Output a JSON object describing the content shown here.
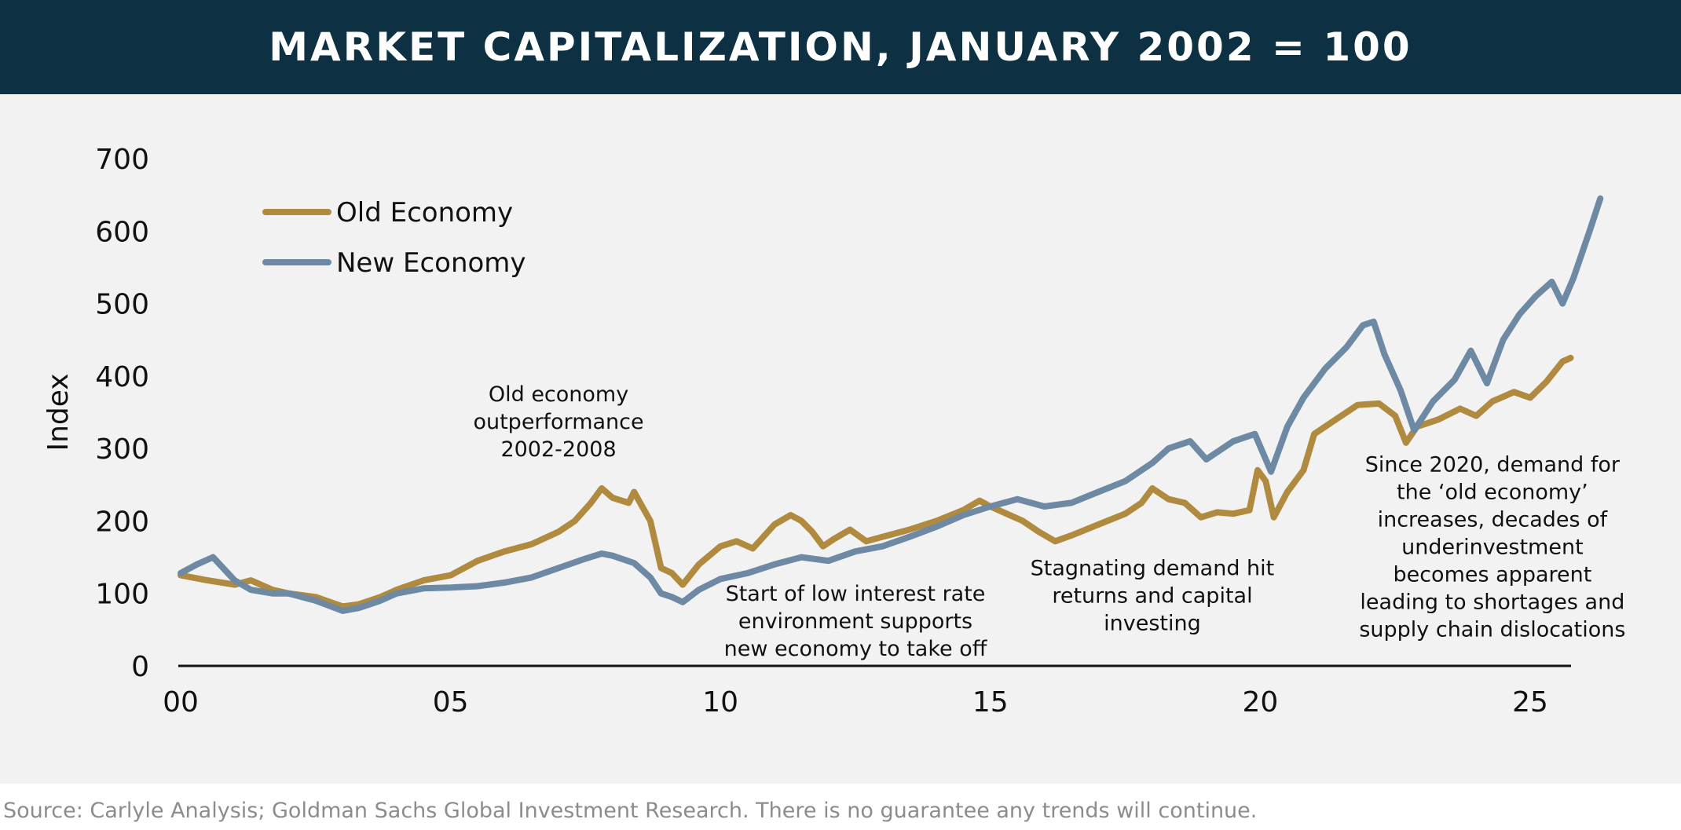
{
  "header": {
    "title": "MARKET CAPITALIZATION, JANUARY 2002 = 100"
  },
  "footer": {
    "source": "Source: Carlyle Analysis; Goldman Sachs Global Investment Research. There is no guarantee any trends will continue."
  },
  "colors": {
    "title_bg": "#0d3142",
    "panel_bg": "#f2f2f2",
    "old_economy": "#b08a3e",
    "new_economy": "#6d89a3"
  },
  "chart_data": {
    "type": "line",
    "title": "MARKET CAPITALIZATION, JANUARY 2002 = 100",
    "xlabel": "",
    "ylabel": "Index",
    "xlim": [
      2000,
      2026
    ],
    "ylim": [
      0,
      700
    ],
    "x_ticks": [
      {
        "value": 2000,
        "label": "00"
      },
      {
        "value": 2005,
        "label": "05"
      },
      {
        "value": 2010,
        "label": "10"
      },
      {
        "value": 2015,
        "label": "15"
      },
      {
        "value": 2020,
        "label": "20"
      },
      {
        "value": 2025,
        "label": "25"
      }
    ],
    "y_ticks": [
      0,
      100,
      200,
      300,
      400,
      500,
      600,
      700
    ],
    "legend": {
      "position": "top-left",
      "entries": [
        "Old Economy",
        "New Economy"
      ]
    },
    "series": [
      {
        "name": "Old Economy",
        "color": "#b08a3e",
        "points": [
          [
            2000,
            125
          ],
          [
            2000.5,
            118
          ],
          [
            2001,
            112
          ],
          [
            2001.3,
            118
          ],
          [
            2001.7,
            105
          ],
          [
            2002,
            100
          ],
          [
            2002.5,
            95
          ],
          [
            2003,
            82
          ],
          [
            2003.3,
            85
          ],
          [
            2003.7,
            95
          ],
          [
            2004,
            105
          ],
          [
            2004.5,
            118
          ],
          [
            2005,
            125
          ],
          [
            2005.5,
            145
          ],
          [
            2006,
            158
          ],
          [
            2006.5,
            168
          ],
          [
            2007,
            185
          ],
          [
            2007.3,
            200
          ],
          [
            2007.6,
            225
          ],
          [
            2007.8,
            245
          ],
          [
            2008,
            232
          ],
          [
            2008.3,
            225
          ],
          [
            2008.4,
            240
          ],
          [
            2008.7,
            200
          ],
          [
            2008.9,
            135
          ],
          [
            2009.1,
            128
          ],
          [
            2009.3,
            112
          ],
          [
            2009.6,
            140
          ],
          [
            2010,
            165
          ],
          [
            2010.3,
            172
          ],
          [
            2010.6,
            162
          ],
          [
            2011,
            195
          ],
          [
            2011.3,
            208
          ],
          [
            2011.5,
            200
          ],
          [
            2011.7,
            185
          ],
          [
            2011.9,
            165
          ],
          [
            2012.1,
            175
          ],
          [
            2012.4,
            188
          ],
          [
            2012.7,
            172
          ],
          [
            2013,
            178
          ],
          [
            2013.5,
            188
          ],
          [
            2014,
            200
          ],
          [
            2014.5,
            215
          ],
          [
            2014.8,
            228
          ],
          [
            2015,
            220
          ],
          [
            2015.3,
            210
          ],
          [
            2015.6,
            200
          ],
          [
            2015.9,
            185
          ],
          [
            2016.2,
            172
          ],
          [
            2016.5,
            180
          ],
          [
            2017,
            195
          ],
          [
            2017.5,
            210
          ],
          [
            2017.8,
            225
          ],
          [
            2018,
            245
          ],
          [
            2018.3,
            230
          ],
          [
            2018.6,
            225
          ],
          [
            2018.9,
            205
          ],
          [
            2019.2,
            212
          ],
          [
            2019.5,
            210
          ],
          [
            2019.8,
            215
          ],
          [
            2019.95,
            270
          ],
          [
            2020.1,
            255
          ],
          [
            2020.25,
            205
          ],
          [
            2020.5,
            240
          ],
          [
            2020.8,
            270
          ],
          [
            2021,
            320
          ],
          [
            2021.4,
            340
          ],
          [
            2021.8,
            360
          ],
          [
            2022.2,
            362
          ],
          [
            2022.5,
            345
          ],
          [
            2022.7,
            308
          ],
          [
            2022.9,
            330
          ],
          [
            2023.3,
            340
          ],
          [
            2023.7,
            355
          ],
          [
            2024,
            345
          ],
          [
            2024.3,
            365
          ],
          [
            2024.7,
            378
          ],
          [
            2025,
            370
          ],
          [
            2025.3,
            392
          ],
          [
            2025.6,
            420
          ],
          [
            2025.75,
            425
          ]
        ]
      },
      {
        "name": "New Economy",
        "color": "#6d89a3",
        "points": [
          [
            2000,
            128
          ],
          [
            2000.3,
            140
          ],
          [
            2000.6,
            150
          ],
          [
            2001,
            118
          ],
          [
            2001.3,
            105
          ],
          [
            2001.7,
            100
          ],
          [
            2002,
            100
          ],
          [
            2002.5,
            90
          ],
          [
            2003,
            76
          ],
          [
            2003.3,
            80
          ],
          [
            2003.7,
            90
          ],
          [
            2004,
            100
          ],
          [
            2004.5,
            107
          ],
          [
            2005,
            108
          ],
          [
            2005.5,
            110
          ],
          [
            2006,
            115
          ],
          [
            2006.5,
            122
          ],
          [
            2007,
            135
          ],
          [
            2007.5,
            148
          ],
          [
            2007.8,
            155
          ],
          [
            2008,
            152
          ],
          [
            2008.4,
            142
          ],
          [
            2008.7,
            122
          ],
          [
            2008.9,
            100
          ],
          [
            2009.1,
            95
          ],
          [
            2009.3,
            88
          ],
          [
            2009.6,
            105
          ],
          [
            2010,
            120
          ],
          [
            2010.5,
            128
          ],
          [
            2011,
            140
          ],
          [
            2011.5,
            150
          ],
          [
            2012,
            145
          ],
          [
            2012.5,
            158
          ],
          [
            2013,
            165
          ],
          [
            2013.5,
            178
          ],
          [
            2014,
            192
          ],
          [
            2014.5,
            208
          ],
          [
            2015,
            220
          ],
          [
            2015.5,
            230
          ],
          [
            2016,
            220
          ],
          [
            2016.5,
            225
          ],
          [
            2017,
            240
          ],
          [
            2017.5,
            255
          ],
          [
            2018,
            280
          ],
          [
            2018.3,
            300
          ],
          [
            2018.7,
            310
          ],
          [
            2019,
            285
          ],
          [
            2019.5,
            310
          ],
          [
            2019.9,
            320
          ],
          [
            2020.2,
            268
          ],
          [
            2020.5,
            330
          ],
          [
            2020.8,
            370
          ],
          [
            2021.2,
            410
          ],
          [
            2021.6,
            440
          ],
          [
            2021.9,
            470
          ],
          [
            2022.1,
            475
          ],
          [
            2022.3,
            430
          ],
          [
            2022.6,
            380
          ],
          [
            2022.85,
            325
          ],
          [
            2023.2,
            365
          ],
          [
            2023.6,
            395
          ],
          [
            2023.9,
            435
          ],
          [
            2024.2,
            390
          ],
          [
            2024.5,
            450
          ],
          [
            2024.8,
            485
          ],
          [
            2025.1,
            510
          ],
          [
            2025.4,
            530
          ],
          [
            2025.6,
            500
          ],
          [
            2025.8,
            535
          ],
          [
            2026.1,
            600
          ],
          [
            2026.3,
            645
          ]
        ]
      }
    ],
    "annotations": [
      {
        "lines": [
          "Old economy",
          "outperformance",
          "2002-2008"
        ],
        "x": 2007,
        "y": 365
      },
      {
        "lines": [
          "Start of low interest rate",
          "environment supports",
          "new economy to take off"
        ],
        "x": 2012.5,
        "y": 90
      },
      {
        "lines": [
          "Stagnating demand hit",
          "returns and capital",
          "investing"
        ],
        "x": 2018,
        "y": 125
      },
      {
        "lines": [
          "Since 2020, demand for",
          "the ‘old economy’",
          "increases, decades of",
          "underinvestment",
          "becomes apparent",
          "leading to shortages and",
          "supply chain dislocations"
        ],
        "x": 2024.3,
        "y": 268
      }
    ]
  }
}
